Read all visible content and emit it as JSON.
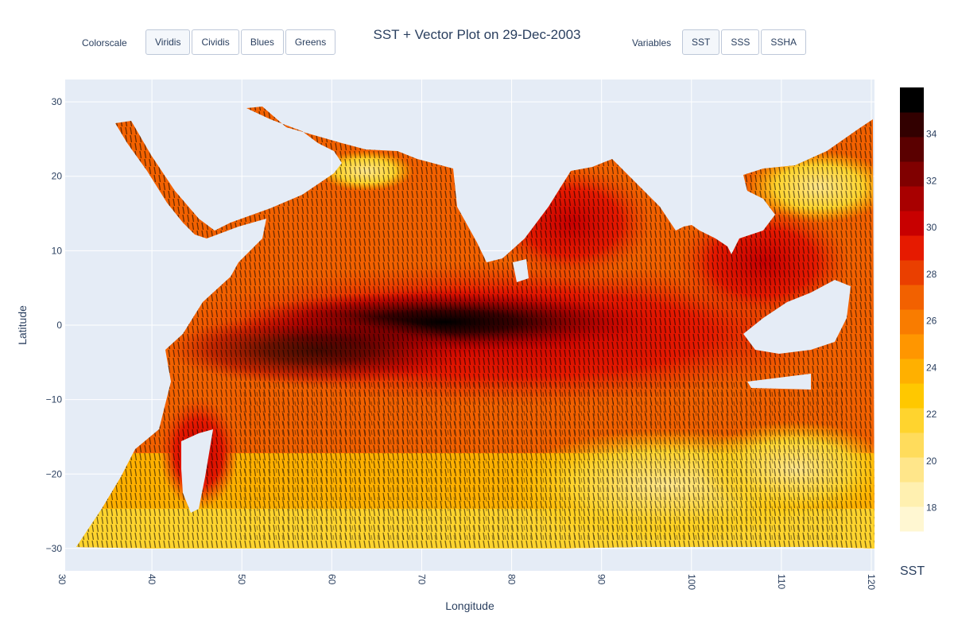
{
  "header": {
    "title": "SST + Vector Plot on 29-Dec-2003",
    "colorscale_label": "Colorscale",
    "colorscale_buttons": [
      "Viridis",
      "Cividis",
      "Blues",
      "Greens"
    ],
    "variables_label": "Variables",
    "variable_buttons": [
      "SST",
      "SSS",
      "SSHA"
    ]
  },
  "chart_data": {
    "type": "heatmap",
    "title": "SST + Vector Plot on 29-Dec-2003",
    "xlabel": "Longitude",
    "ylabel": "Latitude",
    "xlim": [
      30,
      120
    ],
    "ylim": [
      -33,
      33
    ],
    "x_ticks": [
      "30",
      "40",
      "50",
      "60",
      "70",
      "80",
      "90",
      "100",
      "110",
      "120"
    ],
    "y_ticks": [
      "30",
      "20",
      "10",
      "0",
      "−10",
      "−20",
      "−30"
    ],
    "y_tick_values": [
      30,
      20,
      10,
      0,
      -10,
      -20,
      -30
    ],
    "colorbar": {
      "title": "SST",
      "range": [
        17,
        36
      ],
      "tick_labels": [
        "34",
        "32",
        "30",
        "28",
        "26",
        "24",
        "22",
        "20",
        "18"
      ],
      "tick_values": [
        34,
        32,
        30,
        28,
        26,
        24,
        22,
        20,
        18
      ],
      "colors": [
        "#fff7d2",
        "#fff0b0",
        "#ffe68a",
        "#ffdc5c",
        "#ffd42e",
        "#ffc800",
        "#ffb000",
        "#ff9600",
        "#f97c00",
        "#f26100",
        "#ea3f00",
        "#e61a00",
        "#c80000",
        "#a80000",
        "#800000",
        "#5a0000",
        "#320000",
        "#000000"
      ]
    },
    "grid": true,
    "legend": "none",
    "vectors": true
  }
}
